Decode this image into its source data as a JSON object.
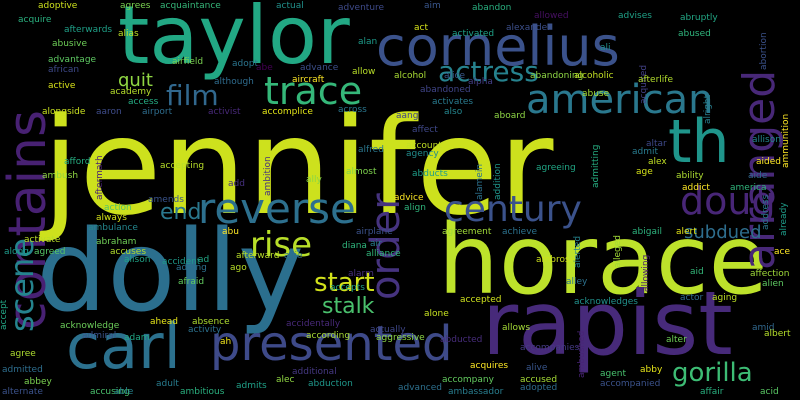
{
  "words": [
    {
      "text": "jennifer",
      "color": "#cde11d"
    },
    {
      "text": "dolly",
      "color": "#2b6f8e"
    },
    {
      "text": "horace",
      "color": "#bde22b"
    },
    {
      "text": "rapist",
      "color": "#472a7a"
    },
    {
      "text": "taylor",
      "color": "#22a884"
    },
    {
      "text": "cornelius",
      "color": "#3b528b"
    },
    {
      "text": "carl",
      "color": "#2c718e"
    },
    {
      "text": "presented",
      "color": "#3e4a89"
    },
    {
      "text": "contains",
      "color": "#482173"
    },
    {
      "text": "th",
      "color": "#1f958b"
    },
    {
      "text": "arranged",
      "color": "#482878"
    },
    {
      "text": "american",
      "color": "#2a788e"
    },
    {
      "text": "reverse",
      "color": "#2d708e"
    },
    {
      "text": "trace",
      "color": "#35b779"
    },
    {
      "text": "order",
      "color": "#46337f"
    },
    {
      "text": "century",
      "color": "#3b528b"
    },
    {
      "text": "doug",
      "color": "#482677"
    },
    {
      "text": "scene",
      "color": "#25848e"
    },
    {
      "text": "actress",
      "color": "#26828e"
    },
    {
      "text": "film",
      "color": "#31688e"
    },
    {
      "text": "rise",
      "color": "#b8de29"
    },
    {
      "text": "start",
      "color": "#d2e21b"
    },
    {
      "text": "gorilla",
      "color": "#3dbc74"
    },
    {
      "text": "end",
      "color": "#2a788e"
    },
    {
      "text": "stalk",
      "color": "#4ac16d"
    },
    {
      "text": "subdued",
      "color": "#2e6e8e"
    },
    {
      "text": "quit",
      "color": "#90d743"
    },
    {
      "text": "abducted",
      "color": "#472d7b"
    },
    {
      "text": "abducts",
      "color": "#1f9e89"
    },
    {
      "text": "abuse",
      "color": "#a5db36"
    },
    {
      "text": "ambushed",
      "color": "#482475"
    },
    {
      "text": "accompanies",
      "color": "#443a83"
    },
    {
      "text": "accepts",
      "color": "#20a386"
    },
    {
      "text": "adoptive",
      "color": "#cde11d"
    },
    {
      "text": "agrees",
      "color": "#7ad151"
    },
    {
      "text": "acquire",
      "color": "#2ab07f"
    },
    {
      "text": "afterwards",
      "color": "#1fa088"
    },
    {
      "text": "abusive",
      "color": "#6ece58"
    },
    {
      "text": "advantage",
      "color": "#5ec962"
    },
    {
      "text": "african",
      "color": "#3e4989"
    },
    {
      "text": "active",
      "color": "#d8e219"
    },
    {
      "text": "academy",
      "color": "#b5de2b"
    },
    {
      "text": "access",
      "color": "#25ab82"
    },
    {
      "text": "acquaintance",
      "color": "#35b779"
    },
    {
      "text": "actual",
      "color": "#21918c"
    },
    {
      "text": "adventure",
      "color": "#3e4a89"
    },
    {
      "text": "aim",
      "color": "#39568c"
    },
    {
      "text": "abandon",
      "color": "#29af7f"
    },
    {
      "text": "allowed",
      "color": "#471063"
    },
    {
      "text": "advises",
      "color": "#1fa187"
    },
    {
      "text": "abruptly",
      "color": "#22a785"
    },
    {
      "text": "abused",
      "color": "#2fb47c"
    },
    {
      "text": "abortion",
      "color": "#3b528b"
    },
    {
      "text": "alias",
      "color": "#bddf26"
    },
    {
      "text": "alan",
      "color": "#1e9b8a"
    },
    {
      "text": "alexander",
      "color": "#3c4f8a"
    },
    {
      "text": "activated",
      "color": "#1fa187"
    },
    {
      "text": "act",
      "color": "#d5e21a"
    },
    {
      "text": "ali",
      "color": "#21908d"
    },
    {
      "text": "airfield",
      "color": "#7ad151"
    },
    {
      "text": "adopt",
      "color": "#2b758e"
    },
    {
      "text": "abe",
      "color": "#440154"
    },
    {
      "text": "advance",
      "color": "#3c4f8a"
    },
    {
      "text": "aircraft",
      "color": "#fde725"
    },
    {
      "text": "allow",
      "color": "#b8de29"
    },
    {
      "text": "alcohol",
      "color": "#a8db34"
    },
    {
      "text": "alice",
      "color": "#38588c"
    },
    {
      "text": "alpha",
      "color": "#433e85"
    },
    {
      "text": "abandoning",
      "color": "#8fd744"
    },
    {
      "text": "alcoholic",
      "color": "#c2df23"
    },
    {
      "text": "acquired",
      "color": "#424186"
    },
    {
      "text": "afterlife",
      "color": "#b2dd2d"
    },
    {
      "text": "alright",
      "color": "#277f8e"
    },
    {
      "text": "ammunition",
      "color": "#fde725"
    },
    {
      "text": "aaron",
      "color": "#3e4c8a"
    },
    {
      "text": "airport",
      "color": "#2e6d8e"
    },
    {
      "text": "activist",
      "color": "#482979"
    },
    {
      "text": "accomplice",
      "color": "#e2e418"
    },
    {
      "text": "although",
      "color": "#2f6c8e"
    },
    {
      "text": "alongside",
      "color": "#c8e020"
    },
    {
      "text": "abandoned",
      "color": "#404588"
    },
    {
      "text": "activates",
      "color": "#297a8e"
    },
    {
      "text": "across",
      "color": "#2a768e"
    },
    {
      "text": "aang",
      "color": "#414487"
    },
    {
      "text": "affect",
      "color": "#3f4889"
    },
    {
      "text": "also",
      "color": "#24868e"
    },
    {
      "text": "aboard",
      "color": "#8ed645"
    },
    {
      "text": "altar",
      "color": "#3e4989"
    },
    {
      "text": "allison",
      "color": "#25858e"
    },
    {
      "text": "admitting",
      "color": "#26ad81"
    },
    {
      "text": "admit",
      "color": "#297b8e"
    },
    {
      "text": "alex",
      "color": "#c0df25"
    },
    {
      "text": "age",
      "color": "#d5e21a"
    },
    {
      "text": "ability",
      "color": "#addc30"
    },
    {
      "text": "aide",
      "color": "#31678e"
    },
    {
      "text": "aided",
      "color": "#fde725"
    },
    {
      "text": "already",
      "color": "#1e9c89"
    },
    {
      "text": "addict",
      "color": "#fde725"
    },
    {
      "text": "america",
      "color": "#30b57c"
    },
    {
      "text": "address",
      "color": "#2a778e"
    },
    {
      "text": "afford",
      "color": "#26ad81"
    },
    {
      "text": "aftermath",
      "color": "#482173"
    },
    {
      "text": "ambush",
      "color": "#90d743"
    },
    {
      "text": "accepting",
      "color": "#b8de29"
    },
    {
      "text": "add",
      "color": "#46307e"
    },
    {
      "text": "ambition",
      "color": "#46327e"
    },
    {
      "text": "ally",
      "color": "#8bd646"
    },
    {
      "text": "alfred",
      "color": "#2a778e"
    },
    {
      "text": "almost",
      "color": "#7fd34e"
    },
    {
      "text": "account",
      "color": "#c0df25"
    },
    {
      "text": "agency",
      "color": "#228d8d"
    },
    {
      "text": "alamein",
      "color": "#2c718e"
    },
    {
      "text": "addition",
      "color": "#1f968b"
    },
    {
      "text": "agreeing",
      "color": "#21a685"
    },
    {
      "text": "always",
      "color": "#d5e21a"
    },
    {
      "text": "amends",
      "color": "#3a548c"
    },
    {
      "text": "action",
      "color": "#52c569"
    },
    {
      "text": "ambulance",
      "color": "#24868e"
    },
    {
      "text": "abraham",
      "color": "#70cf57"
    },
    {
      "text": "accuses",
      "color": "#b2dd2d"
    },
    {
      "text": "along",
      "color": "#1e9b8a"
    },
    {
      "text": "activate",
      "color": "#bade28"
    },
    {
      "text": "agreed",
      "color": "#56c667"
    },
    {
      "text": "abu",
      "color": "#fde725"
    },
    {
      "text": "airplane",
      "color": "#3b528b"
    },
    {
      "text": "diana",
      "color": "#2fb47c"
    },
    {
      "text": "air",
      "color": "#287d8e"
    },
    {
      "text": "alliance",
      "color": "#31b57b"
    },
    {
      "text": "advice",
      "color": "#fde725"
    },
    {
      "text": "align",
      "color": "#2fb47c"
    },
    {
      "text": "agreement",
      "color": "#a0da39"
    },
    {
      "text": "achieve",
      "color": "#2c728e"
    },
    {
      "text": "abigail",
      "color": "#2db27d"
    },
    {
      "text": "alert",
      "color": "#e2e418"
    },
    {
      "text": "alerted",
      "color": "#25848e"
    },
    {
      "text": "alleged",
      "color": "#a2da37"
    },
    {
      "text": "ace",
      "color": "#fde725"
    },
    {
      "text": "aid",
      "color": "#34b679"
    },
    {
      "text": "affection",
      "color": "#9fda3a"
    },
    {
      "text": "alien",
      "color": "#5ec962"
    },
    {
      "text": "accident",
      "color": "#1f9a8a"
    },
    {
      "text": "alison",
      "color": "#20a386"
    },
    {
      "text": "ad",
      "color": "#22a785"
    },
    {
      "text": "adding",
      "color": "#2d708e"
    },
    {
      "text": "afraid",
      "color": "#63cb5f"
    },
    {
      "text": "afterward",
      "color": "#b8de29"
    },
    {
      "text": "allie",
      "color": "#2c728e"
    },
    {
      "text": "ago",
      "color": "#b8de29"
    },
    {
      "text": "alarm",
      "color": "#472f7d"
    },
    {
      "text": "ambrose",
      "color": "#cde11d"
    },
    {
      "text": "alley",
      "color": "#2d718e"
    },
    {
      "text": "allowing",
      "color": "#481b6d"
    },
    {
      "text": "actor",
      "color": "#2f6b8e"
    },
    {
      "text": "aging",
      "color": "#bddf26"
    },
    {
      "text": "accepted",
      "color": "#cde11d"
    },
    {
      "text": "acknowledges",
      "color": "#21918c"
    },
    {
      "text": "alone",
      "color": "#c5e021"
    },
    {
      "text": "acknowledge",
      "color": "#6ccd5a"
    },
    {
      "text": "ahead",
      "color": "#e5e419"
    },
    {
      "text": "absence",
      "color": "#addc30"
    },
    {
      "text": "activity",
      "color": "#2c718e"
    },
    {
      "text": "ah",
      "color": "#f1e51d"
    },
    {
      "text": "accidentally",
      "color": "#482979"
    },
    {
      "text": "according",
      "color": "#a8db34"
    },
    {
      "text": "actually",
      "color": "#3f4788"
    },
    {
      "text": "aggressive",
      "color": "#8bd646"
    },
    {
      "text": "allows",
      "color": "#a5db36"
    },
    {
      "text": "alter",
      "color": "#6ece58"
    },
    {
      "text": "amid",
      "color": "#31688e"
    },
    {
      "text": "albert",
      "color": "#b5de2b"
    },
    {
      "text": "admiral",
      "color": "#3a548c"
    },
    {
      "text": "adam",
      "color": "#22a785"
    },
    {
      "text": "agree",
      "color": "#addc30"
    },
    {
      "text": "admitted",
      "color": "#2e6e8e"
    },
    {
      "text": "abbey",
      "color": "#7ad151"
    },
    {
      "text": "alternate",
      "color": "#3b528b"
    },
    {
      "text": "accusing",
      "color": "#4ac16d"
    },
    {
      "text": "able",
      "color": "#25848e"
    },
    {
      "text": "adult",
      "color": "#287c8e"
    },
    {
      "text": "ambitious",
      "color": "#2ab07f"
    },
    {
      "text": "admits",
      "color": "#1fa188"
    },
    {
      "text": "alec",
      "color": "#90d743"
    },
    {
      "text": "abduction",
      "color": "#1f988b"
    },
    {
      "text": "additional",
      "color": "#453882"
    },
    {
      "text": "advanced",
      "color": "#2d708e"
    },
    {
      "text": "ambassador",
      "color": "#287d8e"
    },
    {
      "text": "accompany",
      "color": "#63cb5f"
    },
    {
      "text": "acquires",
      "color": "#fde725"
    },
    {
      "text": "alive",
      "color": "#39568c"
    },
    {
      "text": "accused",
      "color": "#a5db36"
    },
    {
      "text": "adopted",
      "color": "#2f6c8e"
    },
    {
      "text": "agent",
      "color": "#48c16e"
    },
    {
      "text": "abby",
      "color": "#e5e419"
    },
    {
      "text": "accompanied",
      "color": "#3b528b"
    },
    {
      "text": "affair",
      "color": "#29af7f"
    },
    {
      "text": "acid",
      "color": "#5ac864"
    },
    {
      "text": "accept",
      "color": "#22a785"
    }
  ]
}
